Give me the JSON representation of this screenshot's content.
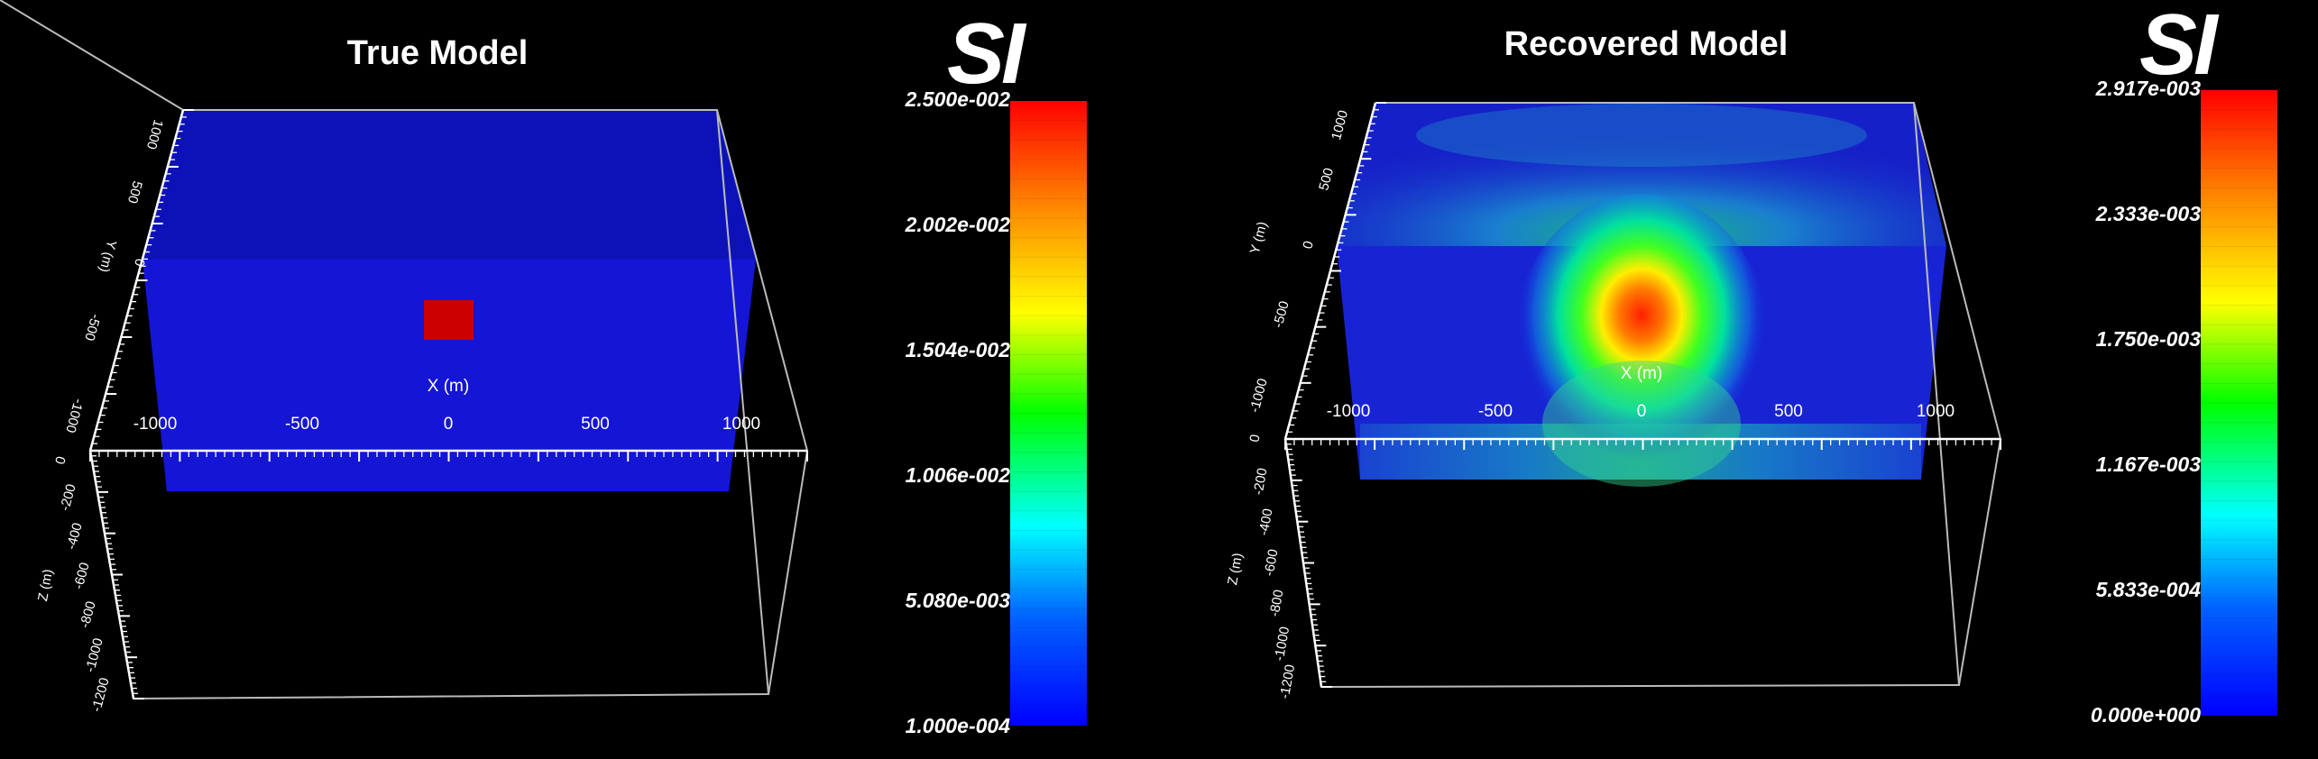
{
  "panels": [
    {
      "title": "True Model",
      "unit": "SI",
      "x_axis_label": "X (m)",
      "y_axis_label": "Y (m)",
      "z_axis_label": "Z (m)",
      "x_ticks": [
        "-1000",
        "-500",
        "0",
        "500",
        "1000"
      ],
      "y_ticks": [
        "-1000",
        "-500",
        "0",
        "500",
        "1000"
      ],
      "z_ticks": [
        "0",
        "-200",
        "-400",
        "-600",
        "-800",
        "-1000",
        "-1200"
      ],
      "colorbar_ticks": [
        "2.500e-002",
        "2.002e-002",
        "1.504e-002",
        "1.006e-002",
        "5.080e-003",
        "1.000e-004"
      ],
      "colorbar_range": [
        0.0001,
        0.025
      ],
      "background_value": 0.0001,
      "anomaly_value": 0.025
    },
    {
      "title": "Recovered Model",
      "unit": "SI",
      "x_axis_label": "X (m)",
      "y_axis_label": "Y (m)",
      "z_axis_label": "Z (m)",
      "x_ticks": [
        "-1000",
        "-500",
        "0",
        "500",
        "1000"
      ],
      "y_ticks": [
        "-1000",
        "-500",
        "0",
        "500",
        "1000"
      ],
      "z_ticks": [
        "0",
        "-200",
        "-400",
        "-600",
        "-800",
        "-1000",
        "-1200"
      ],
      "colorbar_ticks": [
        "2.917e-003",
        "2.333e-003",
        "1.750e-003",
        "1.167e-003",
        "5.833e-004",
        "0.000e+000"
      ],
      "colorbar_range": [
        0.0,
        0.002917
      ],
      "peak_value": 0.002917
    }
  ],
  "colors": {
    "background": "#000000",
    "model_blue": "#1515d6",
    "model_top_blue": "#0d12b8",
    "anomaly_red": "#cc0000",
    "box_edge": "#bbbbbb"
  }
}
